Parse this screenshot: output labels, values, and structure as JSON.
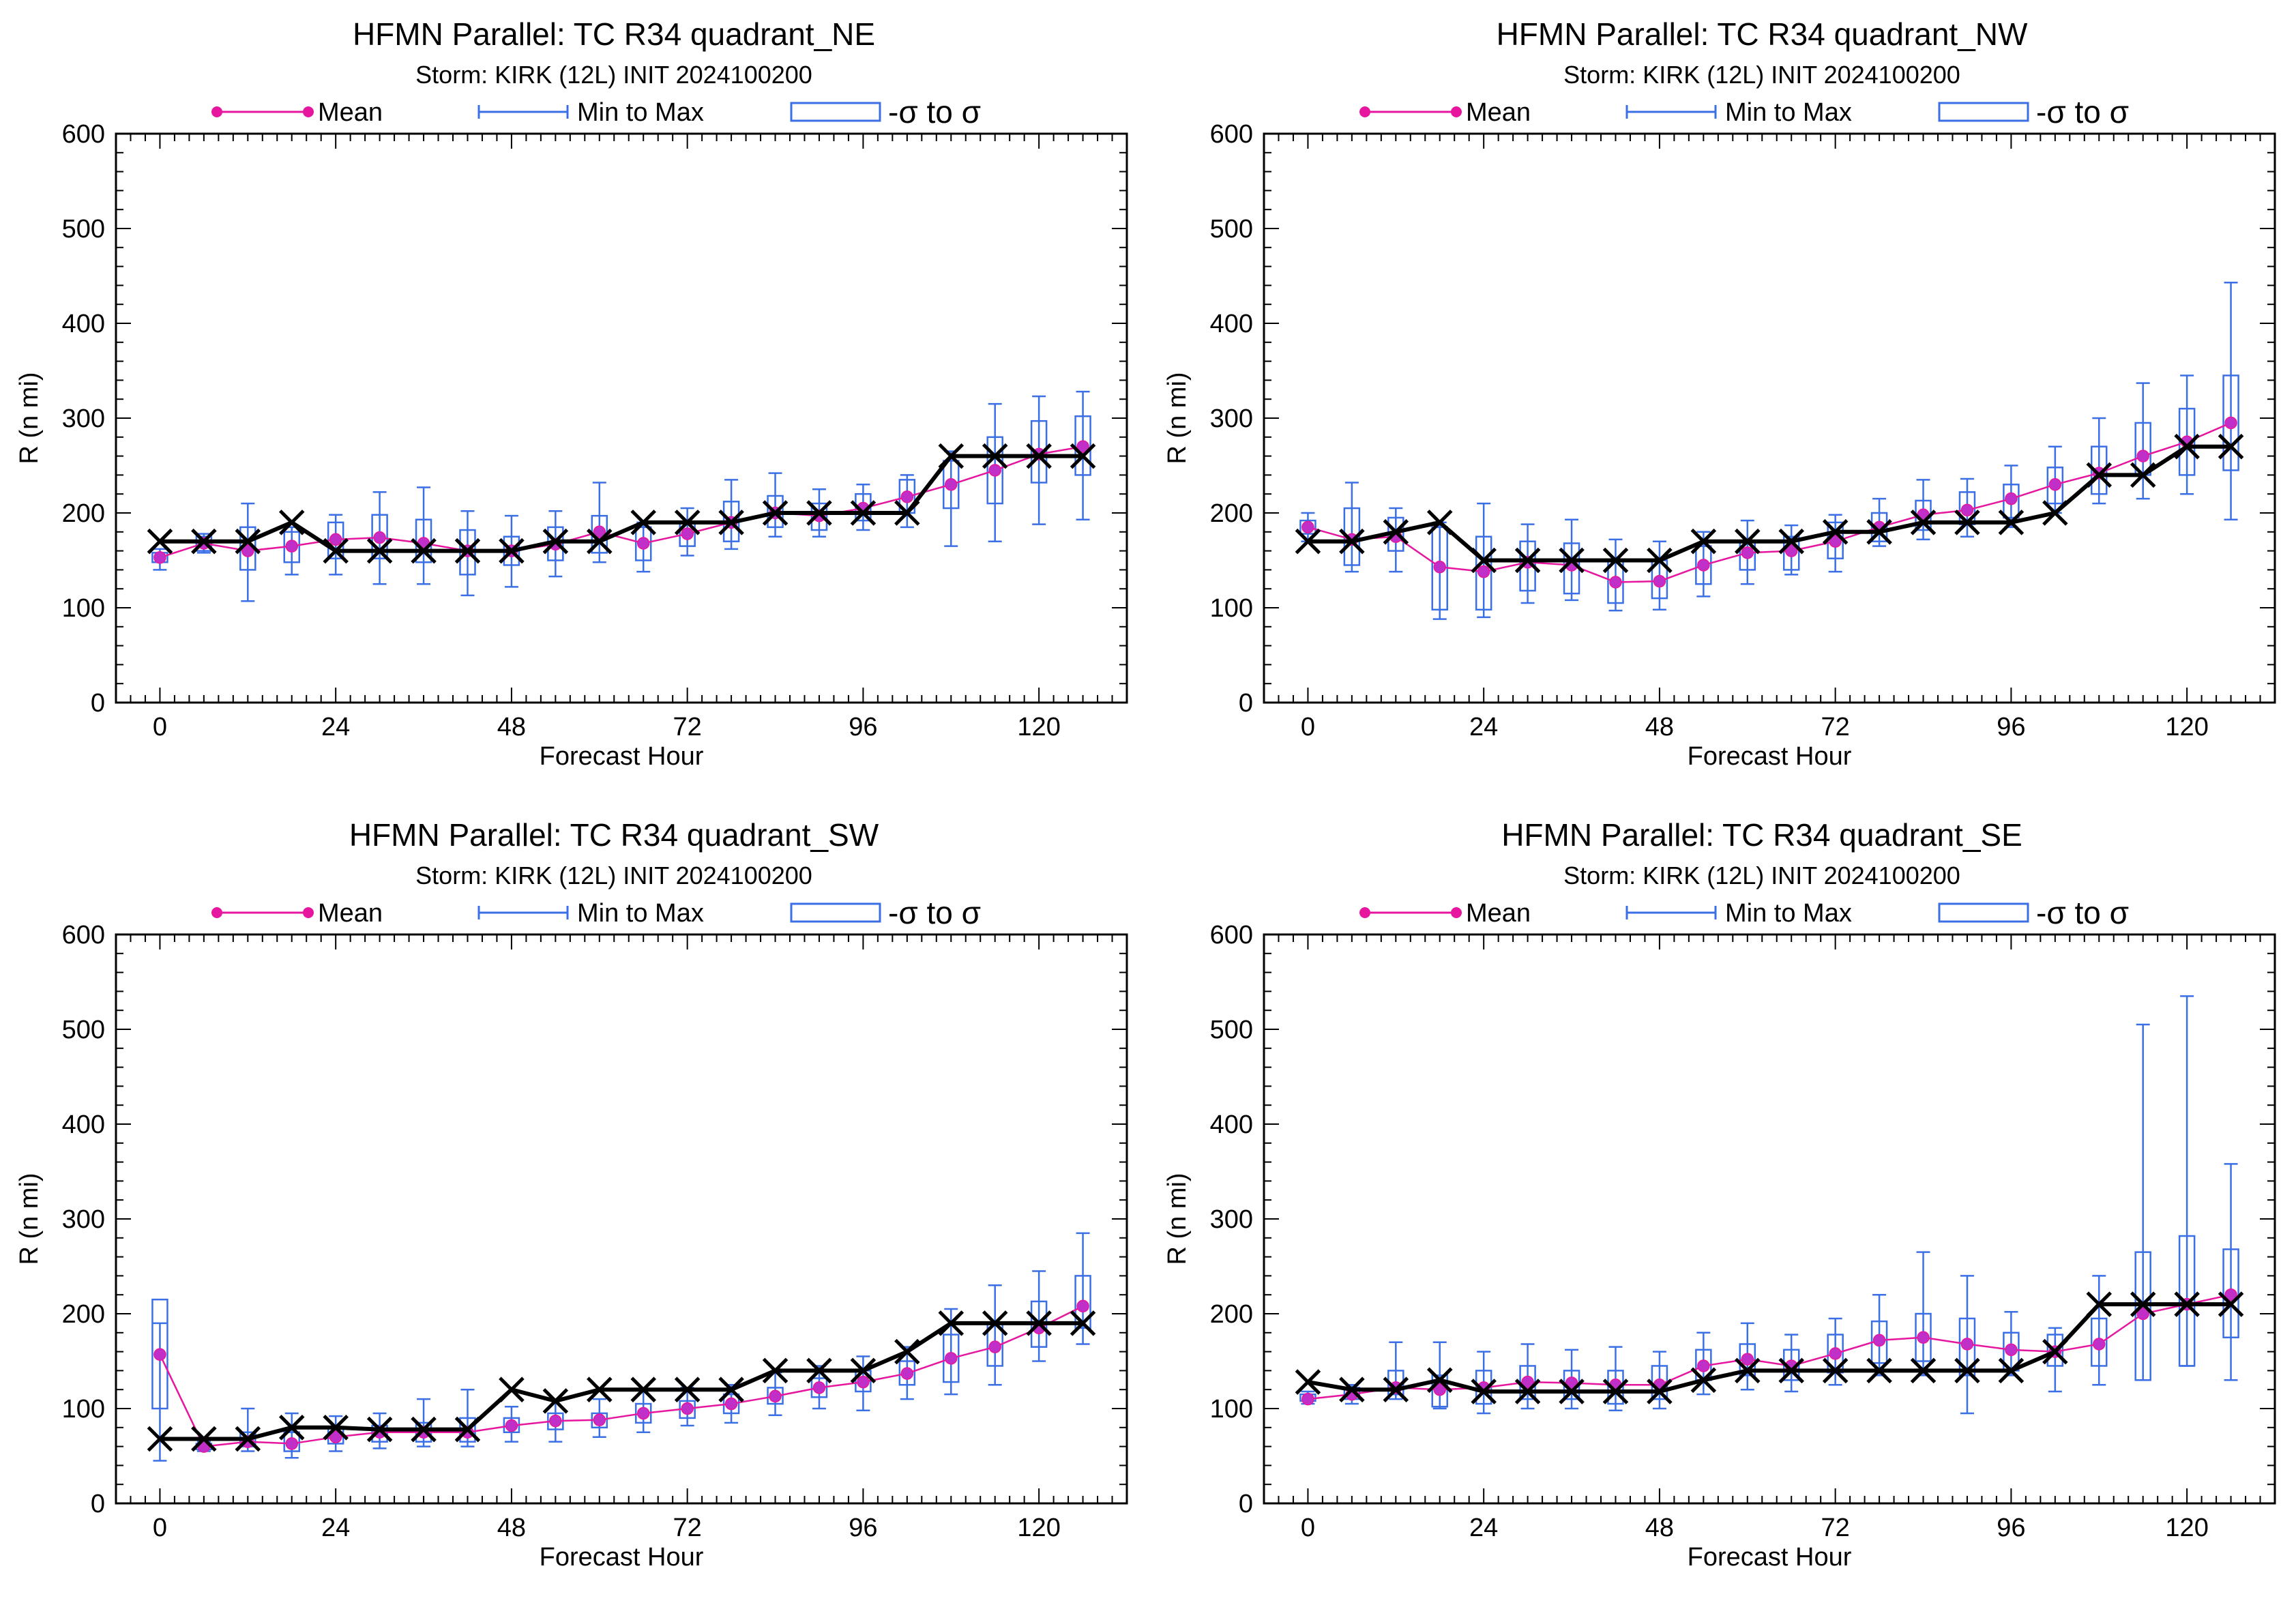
{
  "colors": {
    "mean": "#e6169f",
    "range": "#3b6fe6",
    "sigma": "#3b6fe6",
    "reference": "#000000",
    "axes": "#000000",
    "background": "#ffffff"
  },
  "legend": {
    "mean_label": "Mean",
    "range_label": "Min to Max",
    "sigma_label": "-σ to σ"
  },
  "chart_data": [
    {
      "type": "box-line",
      "title": "HFMN Parallel: TC  R34 quadrant_NE",
      "subtitle": "Storm: KIRK (12L) INIT 2024100200",
      "xlabel": "Forecast Hour",
      "ylabel": "R (n mi)",
      "xlim": [
        -6,
        132
      ],
      "ylim": [
        0,
        600
      ],
      "xticks": [
        0,
        24,
        48,
        72,
        96,
        120
      ],
      "yticks": [
        0,
        100,
        200,
        300,
        400,
        500,
        600
      ],
      "grid": false,
      "legend_position": "top",
      "x": [
        0,
        6,
        12,
        18,
        24,
        30,
        36,
        42,
        48,
        54,
        60,
        66,
        72,
        78,
        84,
        90,
        96,
        102,
        108,
        114,
        120,
        126
      ],
      "mean": [
        153,
        168,
        160,
        165,
        172,
        174,
        168,
        160,
        160,
        167,
        180,
        168,
        178,
        190,
        200,
        197,
        205,
        217,
        230,
        245,
        262,
        270
      ],
      "min": [
        140,
        158,
        107,
        135,
        135,
        125,
        125,
        113,
        122,
        133,
        148,
        138,
        155,
        162,
        175,
        175,
        182,
        185,
        165,
        170,
        188,
        193
      ],
      "max": [
        162,
        178,
        210,
        185,
        198,
        222,
        227,
        202,
        197,
        202,
        232,
        190,
        205,
        235,
        242,
        225,
        230,
        240,
        265,
        315,
        323,
        328
      ],
      "sigma_low": [
        148,
        160,
        140,
        148,
        152,
        152,
        148,
        135,
        145,
        150,
        158,
        150,
        165,
        170,
        185,
        182,
        192,
        200,
        205,
        210,
        232,
        240
      ],
      "sigma_high": [
        158,
        175,
        185,
        180,
        190,
        198,
        193,
        182,
        175,
        185,
        197,
        185,
        190,
        212,
        218,
        210,
        220,
        235,
        255,
        280,
        297,
        302
      ],
      "reference": [
        170,
        170,
        170,
        190,
        160,
        160,
        160,
        160,
        160,
        170,
        170,
        190,
        190,
        190,
        200,
        200,
        200,
        200,
        260,
        260,
        260,
        260
      ]
    },
    {
      "type": "box-line",
      "title": "HFMN Parallel: TC  R34 quadrant_NW",
      "subtitle": "Storm: KIRK (12L) INIT 2024100200",
      "xlabel": "Forecast Hour",
      "ylabel": "R (n mi)",
      "xlim": [
        -6,
        132
      ],
      "ylim": [
        0,
        600
      ],
      "xticks": [
        0,
        24,
        48,
        72,
        96,
        120
      ],
      "yticks": [
        0,
        100,
        200,
        300,
        400,
        500,
        600
      ],
      "grid": false,
      "legend_position": "top",
      "x": [
        0,
        6,
        12,
        18,
        24,
        30,
        36,
        42,
        48,
        54,
        60,
        66,
        72,
        78,
        84,
        90,
        96,
        102,
        108,
        114,
        120,
        126
      ],
      "mean": [
        185,
        172,
        175,
        143,
        138,
        148,
        145,
        127,
        128,
        145,
        158,
        160,
        170,
        185,
        198,
        203,
        215,
        230,
        242,
        260,
        275,
        295
      ],
      "min": [
        170,
        138,
        138,
        88,
        90,
        105,
        108,
        97,
        98,
        112,
        125,
        135,
        138,
        165,
        172,
        175,
        185,
        200,
        210,
        215,
        220,
        193
      ],
      "max": [
        200,
        232,
        205,
        190,
        210,
        188,
        193,
        172,
        170,
        180,
        192,
        187,
        198,
        215,
        235,
        236,
        250,
        270,
        300,
        337,
        345,
        443
      ],
      "sigma_low": [
        178,
        145,
        160,
        98,
        98,
        118,
        115,
        105,
        110,
        125,
        140,
        140,
        152,
        170,
        182,
        188,
        195,
        210,
        220,
        240,
        240,
        245
      ],
      "sigma_high": [
        192,
        205,
        195,
        185,
        175,
        170,
        168,
        150,
        150,
        165,
        170,
        175,
        190,
        200,
        213,
        222,
        230,
        248,
        270,
        295,
        310,
        345
      ],
      "reference": [
        170,
        170,
        180,
        190,
        150,
        150,
        150,
        150,
        150,
        170,
        170,
        170,
        180,
        180,
        190,
        190,
        190,
        200,
        240,
        240,
        270,
        270
      ]
    },
    {
      "type": "box-line",
      "title": "HFMN Parallel: TC  R34 quadrant_SW",
      "subtitle": "Storm: KIRK (12L) INIT 2024100200",
      "xlabel": "Forecast Hour",
      "ylabel": "R (n mi)",
      "xlim": [
        -6,
        132
      ],
      "ylim": [
        0,
        600
      ],
      "xticks": [
        0,
        24,
        48,
        72,
        96,
        120
      ],
      "yticks": [
        0,
        100,
        200,
        300,
        400,
        500,
        600
      ],
      "grid": false,
      "legend_position": "top",
      "x": [
        0,
        6,
        12,
        18,
        24,
        30,
        36,
        42,
        48,
        54,
        60,
        66,
        72,
        78,
        84,
        90,
        96,
        102,
        108,
        114,
        120,
        126
      ],
      "mean": [
        157,
        60,
        65,
        63,
        70,
        75,
        75,
        75,
        82,
        87,
        88,
        95,
        100,
        105,
        113,
        122,
        128,
        137,
        153,
        165,
        185,
        208
      ],
      "min": [
        45,
        55,
        55,
        48,
        55,
        58,
        60,
        60,
        65,
        65,
        70,
        75,
        82,
        85,
        93,
        100,
        98,
        110,
        115,
        125,
        150,
        168
      ],
      "max": [
        190,
        65,
        100,
        95,
        92,
        95,
        110,
        120,
        102,
        110,
        110,
        120,
        122,
        125,
        138,
        145,
        155,
        165,
        205,
        230,
        245,
        285
      ],
      "sigma_low": [
        100,
        57,
        60,
        55,
        63,
        65,
        65,
        65,
        75,
        78,
        80,
        85,
        90,
        95,
        105,
        112,
        118,
        125,
        128,
        145,
        165,
        185
      ],
      "sigma_high": [
        215,
        63,
        75,
        75,
        80,
        82,
        85,
        90,
        90,
        95,
        95,
        105,
        108,
        115,
        122,
        132,
        140,
        150,
        178,
        190,
        213,
        240
      ],
      "reference": [
        68,
        68,
        68,
        80,
        80,
        78,
        78,
        78,
        120,
        108,
        120,
        120,
        120,
        120,
        140,
        140,
        140,
        160,
        190,
        190,
        190,
        190
      ]
    },
    {
      "type": "box-line",
      "title": "HFMN Parallel: TC  R34 quadrant_SE",
      "subtitle": "Storm: KIRK (12L) INIT 2024100200",
      "xlabel": "Forecast Hour",
      "ylabel": "R (n mi)",
      "xlim": [
        -6,
        132
      ],
      "ylim": [
        0,
        600
      ],
      "xticks": [
        0,
        24,
        48,
        72,
        96,
        120
      ],
      "yticks": [
        0,
        100,
        200,
        300,
        400,
        500,
        600
      ],
      "grid": false,
      "legend_position": "top",
      "x": [
        0,
        6,
        12,
        18,
        24,
        30,
        36,
        42,
        48,
        54,
        60,
        66,
        72,
        78,
        84,
        90,
        96,
        102,
        108,
        114,
        120,
        126
      ],
      "mean": [
        110,
        115,
        122,
        120,
        122,
        128,
        127,
        125,
        125,
        145,
        152,
        145,
        158,
        172,
        175,
        168,
        162,
        160,
        168,
        200,
        210,
        220
      ],
      "min": [
        105,
        105,
        110,
        100,
        95,
        100,
        100,
        98,
        100,
        115,
        120,
        118,
        125,
        135,
        135,
        95,
        135,
        118,
        125,
        130,
        145,
        130
      ],
      "max": [
        118,
        125,
        170,
        170,
        160,
        168,
        162,
        165,
        160,
        180,
        190,
        178,
        195,
        220,
        265,
        240,
        202,
        185,
        240,
        505,
        535,
        358
      ],
      "sigma_low": [
        108,
        110,
        115,
        102,
        105,
        110,
        110,
        105,
        110,
        130,
        135,
        130,
        138,
        148,
        150,
        135,
        140,
        145,
        145,
        130,
        145,
        175
      ],
      "sigma_high": [
        115,
        122,
        140,
        135,
        140,
        145,
        140,
        140,
        145,
        162,
        168,
        162,
        178,
        192,
        200,
        195,
        180,
        178,
        195,
        265,
        282,
        268
      ],
      "reference": [
        128,
        120,
        120,
        130,
        118,
        118,
        118,
        118,
        118,
        130,
        140,
        140,
        140,
        140,
        140,
        140,
        140,
        160,
        210,
        210,
        210,
        210
      ]
    }
  ]
}
